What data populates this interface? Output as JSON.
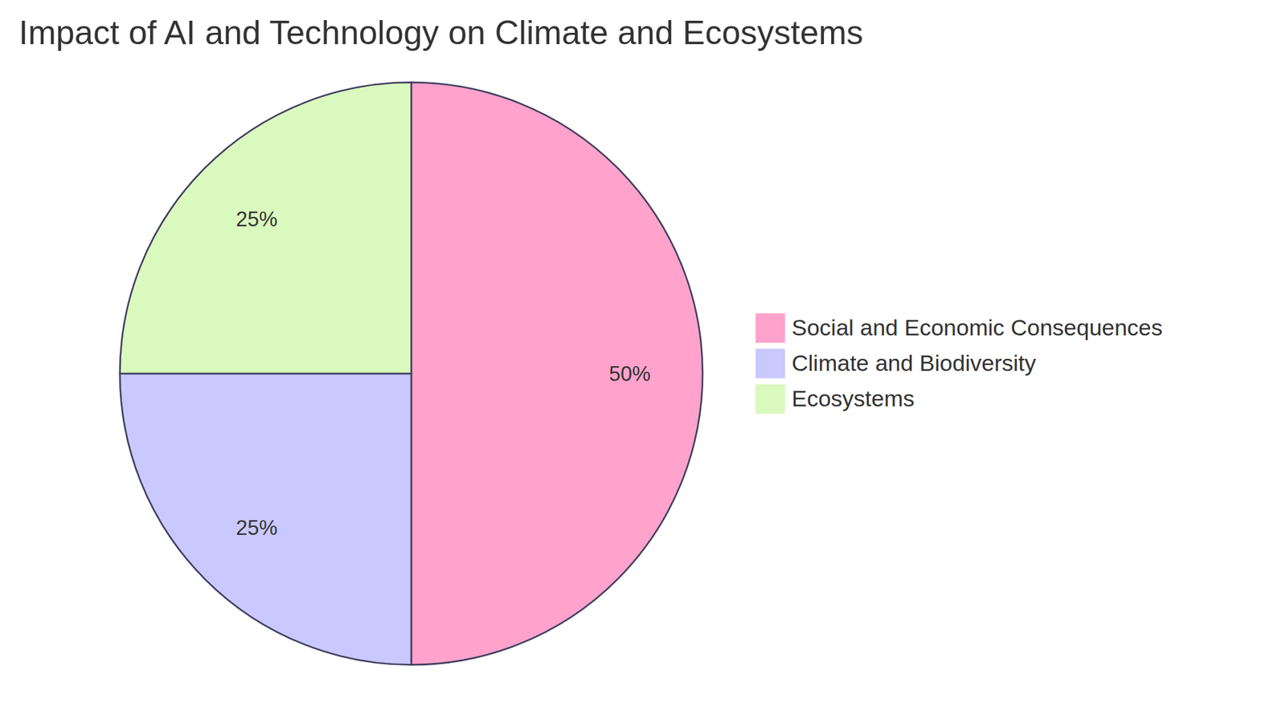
{
  "chart_data": {
    "type": "pie",
    "title": "Impact of AI and Technology on Climate and Ecosystems",
    "categories": [
      "Social and Economic Consequences",
      "Climate and Biodiversity",
      "Ecosystems"
    ],
    "values": [
      50,
      25,
      25
    ],
    "value_labels": [
      "50%",
      "25%",
      "25%"
    ],
    "colors": [
      "#FFA3CD",
      "#C9C9FF",
      "#DAF9BE"
    ],
    "data_labels": true
  }
}
